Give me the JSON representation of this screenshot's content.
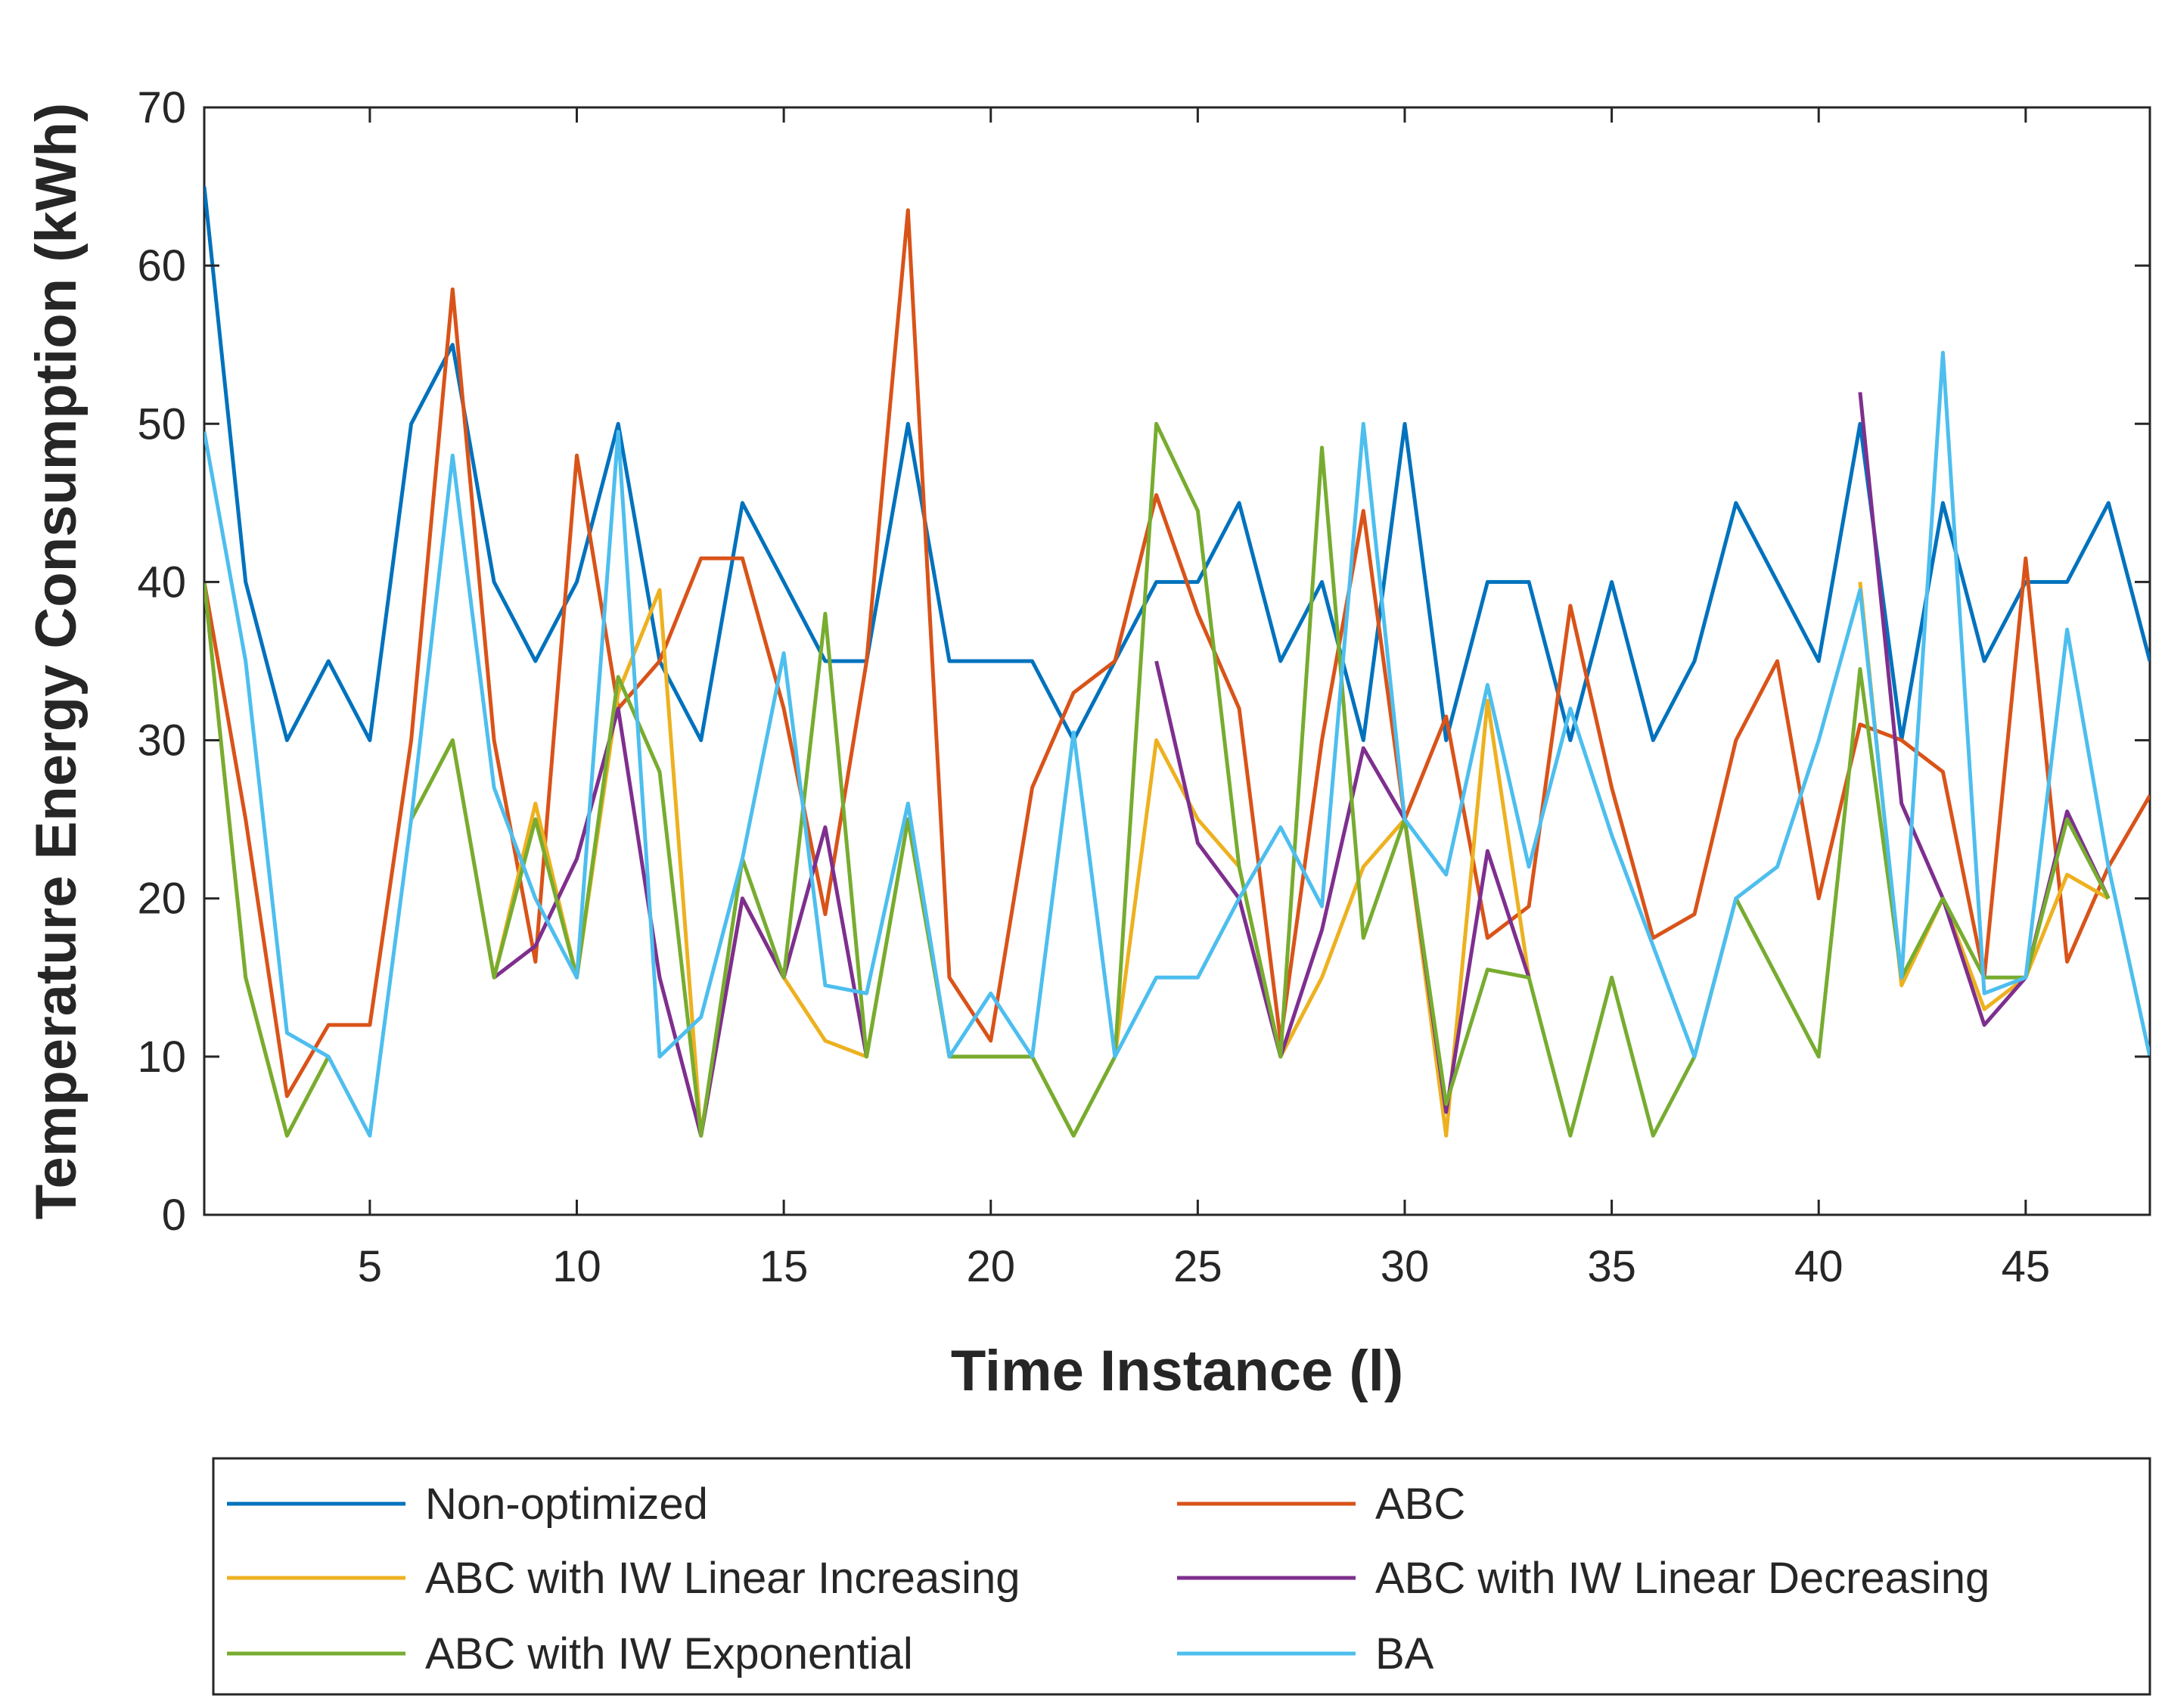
{
  "chart_data": {
    "type": "line",
    "title": "",
    "xlabel": "Time Instance (l)",
    "ylabel": "Temperature Energy Consumption (kWh)",
    "xlim": [
      1,
      48
    ],
    "ylim": [
      0,
      70
    ],
    "xticks": [
      5,
      10,
      15,
      20,
      25,
      30,
      35,
      40,
      45
    ],
    "yticks": [
      0,
      10,
      20,
      30,
      40,
      50,
      60,
      70
    ],
    "grid": false,
    "legend_position": "bottom-outside",
    "x": [
      1,
      2,
      3,
      4,
      5,
      6,
      7,
      8,
      9,
      10,
      11,
      12,
      13,
      14,
      15,
      16,
      17,
      18,
      19,
      20,
      21,
      22,
      23,
      24,
      25,
      26,
      27,
      28,
      29,
      30,
      31,
      32,
      33,
      34,
      35,
      36,
      37,
      38,
      39,
      40,
      41,
      42,
      43,
      44,
      45,
      46,
      47,
      48
    ],
    "series": [
      {
        "name": "Non-optimized",
        "color": "#0072BD",
        "values": [
          65,
          40,
          30,
          35,
          30,
          50,
          55,
          40,
          35,
          40,
          50,
          35,
          30,
          45,
          40,
          35,
          35,
          50,
          35,
          35,
          35,
          30,
          35,
          40,
          40,
          45,
          35,
          40,
          30,
          50,
          30,
          40,
          40,
          30,
          40,
          30,
          35,
          45,
          40,
          35,
          50,
          30,
          45,
          35,
          40,
          40,
          45,
          35
        ]
      },
      {
        "name": "ABC",
        "color": "#D95319",
        "values": [
          40,
          25,
          7.5,
          12,
          12,
          30,
          58.5,
          30,
          16,
          48,
          32,
          35,
          41.5,
          41.5,
          32,
          19,
          35,
          63.5,
          15,
          11,
          27,
          33,
          35,
          45.5,
          38,
          32,
          11,
          30,
          44.5,
          25,
          31.5,
          17.5,
          19.5,
          38.5,
          27,
          17.5,
          19,
          30,
          35,
          20,
          31,
          30,
          28,
          15,
          41.5,
          16,
          22,
          26.5
        ]
      },
      {
        "name": "ABC with IW Linear Increasing",
        "color": "#EDB120",
        "values": [
          40,
          15,
          5,
          10,
          null,
          25,
          30,
          15,
          26,
          15,
          33,
          39.5,
          5,
          20,
          15,
          11,
          10,
          25,
          10,
          10,
          10,
          5,
          10,
          30,
          25,
          22,
          10,
          15,
          22,
          25,
          5,
          32.5,
          15,
          null,
          null,
          null,
          null,
          null,
          null,
          null,
          40,
          14.5,
          20,
          13,
          15,
          21.5,
          20,
          null
        ]
      },
      {
        "name": "ABC with IW Linear Decreasing",
        "color": "#7E2F8E",
        "values": [
          null,
          null,
          null,
          null,
          null,
          null,
          null,
          15,
          17,
          22.5,
          32,
          15,
          5,
          20,
          15,
          24.5,
          10,
          null,
          null,
          null,
          null,
          null,
          null,
          35,
          23.5,
          20,
          10,
          18,
          29.5,
          25,
          6.5,
          23,
          15,
          null,
          null,
          null,
          null,
          null,
          null,
          null,
          52,
          26,
          20,
          12,
          15,
          25.5,
          20,
          null
        ]
      },
      {
        "name": "ABC with IW Exponential",
        "color": "#77AC30",
        "values": [
          40,
          15,
          5,
          10,
          null,
          25,
          30,
          15,
          25,
          15,
          34,
          28,
          5,
          22.5,
          15,
          38,
          10,
          25,
          10,
          10,
          10,
          5,
          10,
          50,
          44.5,
          22,
          10,
          48.5,
          17.5,
          25,
          7,
          15.5,
          15,
          5,
          15,
          5,
          10,
          20,
          15,
          10,
          34.5,
          15,
          20,
          15,
          15,
          25,
          20,
          null
        ]
      },
      {
        "name": "BA",
        "color": "#4DBEEE",
        "values": [
          49.5,
          35,
          11.5,
          10,
          5,
          25,
          48,
          27,
          20,
          15,
          49.5,
          10,
          12.5,
          22.5,
          35.5,
          14.5,
          14,
          26,
          10,
          14,
          10,
          30.5,
          10,
          15,
          15,
          20,
          24.5,
          19.5,
          50,
          25,
          21.5,
          33.5,
          22,
          32,
          24,
          17,
          10,
          20,
          22,
          30,
          39.5,
          15,
          54.5,
          14,
          15,
          37,
          22,
          10
        ]
      }
    ]
  }
}
